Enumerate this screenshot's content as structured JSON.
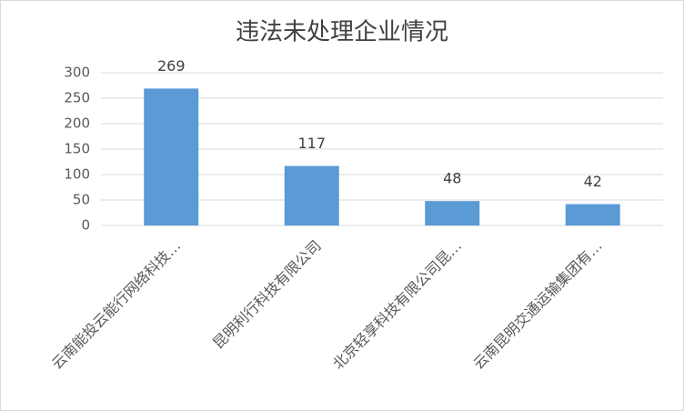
{
  "chart_data": {
    "type": "bar",
    "title": "违法未处理企业情况",
    "categories": [
      "云南能投云能行网络科技…",
      "昆明利行科技有限公司",
      "北京轻享科技有限公司昆…",
      "云南昆明交通运输集团有…"
    ],
    "values": [
      269,
      117,
      48,
      42
    ],
    "color": "#5b9bd5",
    "ylim": [
      0,
      300
    ],
    "yticks": [
      0,
      50,
      100,
      150,
      200,
      250,
      300
    ],
    "grid": true
  }
}
